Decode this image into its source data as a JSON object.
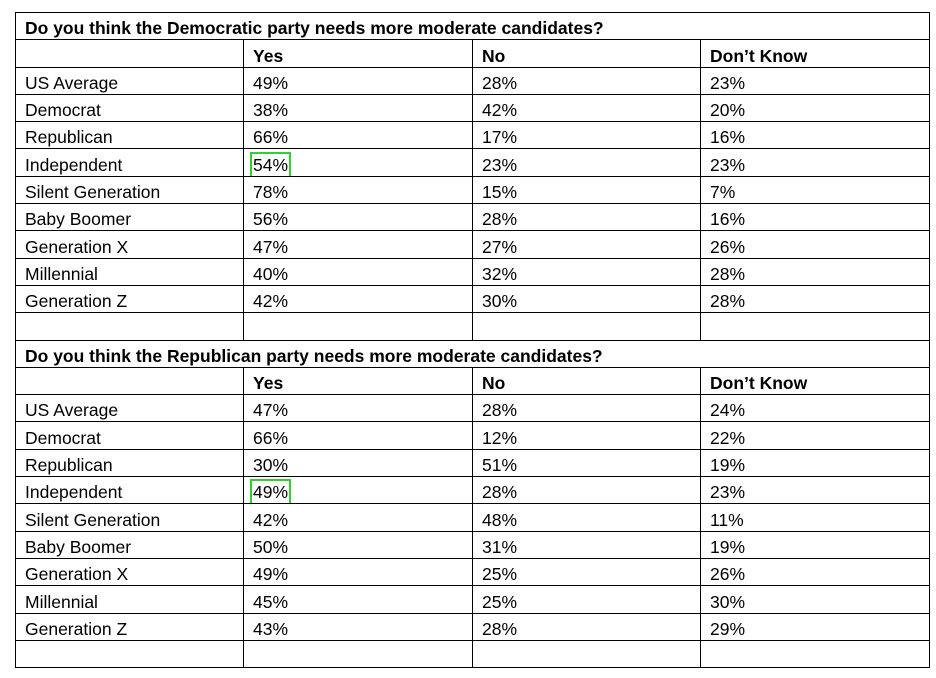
{
  "sections": [
    {
      "question": "Do you think the Democratic party needs more moderate candidates?",
      "headers": [
        "",
        "Yes",
        "No",
        "Don’t Know"
      ],
      "rows": [
        {
          "label": "US Average",
          "yes": "49%",
          "no": "28%",
          "dont_know": "23%"
        },
        {
          "label": "Democrat",
          "yes": "38%",
          "no": "42%",
          "dont_know": "20%"
        },
        {
          "label": "Republican",
          "yes": "66%",
          "no": "17%",
          "dont_know": "16%"
        },
        {
          "label": "Independent",
          "yes": "54%",
          "no": "23%",
          "dont_know": "23%",
          "highlight_yes": true
        },
        {
          "label": "Silent Generation",
          "yes": "78%",
          "no": "15%",
          "dont_know": "7%"
        },
        {
          "label": "Baby Boomer",
          "yes": "56%",
          "no": "28%",
          "dont_know": "16%"
        },
        {
          "label": "Generation X",
          "yes": "47%",
          "no": "27%",
          "dont_know": "26%"
        },
        {
          "label": "Millennial",
          "yes": "40%",
          "no": "32%",
          "dont_know": "28%"
        },
        {
          "label": "Generation Z",
          "yes": "42%",
          "no": "30%",
          "dont_know": "28%"
        }
      ]
    },
    {
      "question": "Do you think the Republican party needs more moderate candidates?",
      "headers": [
        "",
        "Yes",
        "No",
        "Don’t Know"
      ],
      "rows": [
        {
          "label": "US Average",
          "yes": "47%",
          "no": "28%",
          "dont_know": "24%"
        },
        {
          "label": "Democrat",
          "yes": "66%",
          "no": "12%",
          "dont_know": "22%"
        },
        {
          "label": "Republican",
          "yes": "30%",
          "no": "51%",
          "dont_know": "19%"
        },
        {
          "label": "Independent",
          "yes": "49%",
          "no": "28%",
          "dont_know": "23%",
          "highlight_yes": true
        },
        {
          "label": "Silent Generation",
          "yes": "42%",
          "no": "48%",
          "dont_know": "11%"
        },
        {
          "label": "Baby Boomer",
          "yes": "50%",
          "no": "31%",
          "dont_know": "19%"
        },
        {
          "label": "Generation X",
          "yes": "49%",
          "no": "25%",
          "dont_know": "26%"
        },
        {
          "label": "Millennial",
          "yes": "45%",
          "no": "25%",
          "dont_know": "30%"
        },
        {
          "label": "Generation Z",
          "yes": "43%",
          "no": "28%",
          "dont_know": "29%"
        }
      ]
    }
  ],
  "highlight_color": "#2fd12f"
}
